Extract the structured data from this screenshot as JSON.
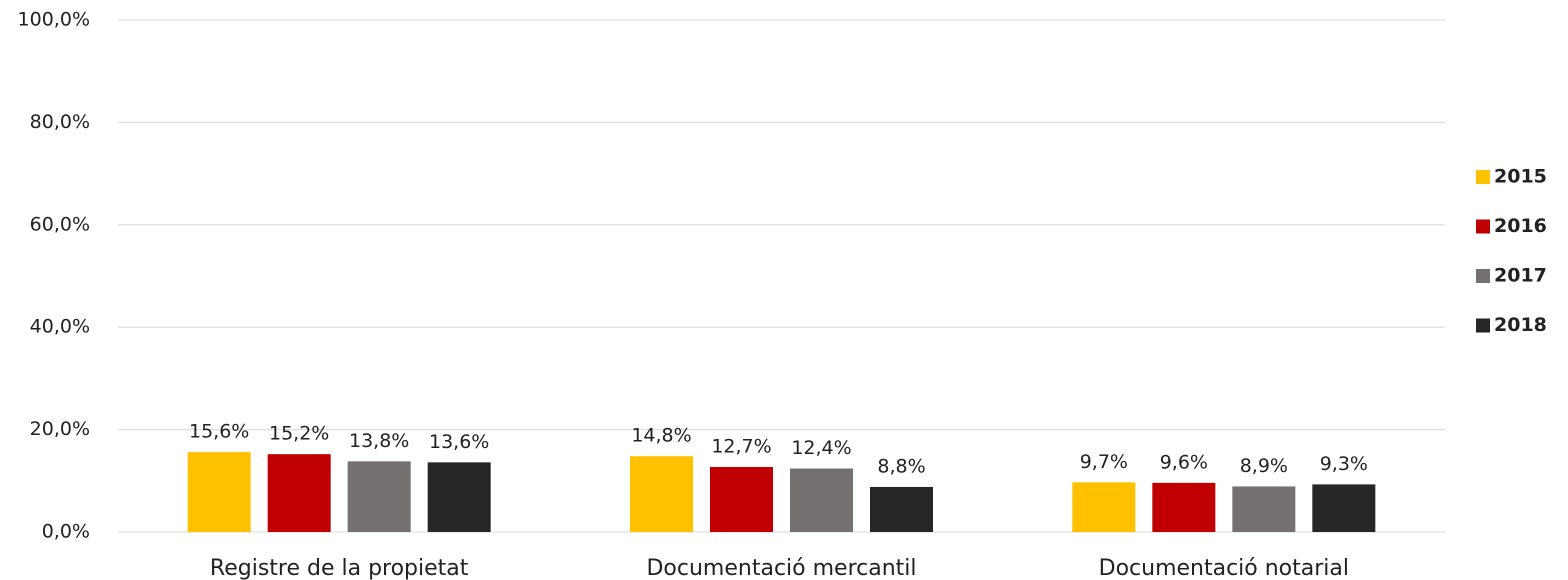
{
  "chart_data": {
    "type": "bar",
    "categories": [
      "Registre de la propietat",
      "Documentació mercantil",
      "Documentació notarial"
    ],
    "series": [
      {
        "name": "2015",
        "color": "#ffc000",
        "values": [
          15.6,
          14.8,
          9.7
        ],
        "value_labels": [
          "15,6%",
          "14,8%",
          "9,7%"
        ]
      },
      {
        "name": "2016",
        "color": "#c00000",
        "values": [
          15.2,
          12.7,
          9.6
        ],
        "value_labels": [
          "15,2%",
          "12,7%",
          "9,6%"
        ]
      },
      {
        "name": "2017",
        "color": "#767171",
        "values": [
          13.8,
          12.4,
          8.9
        ],
        "value_labels": [
          "13,8%",
          "12,4%",
          "8,9%"
        ]
      },
      {
        "name": "2018",
        "color": "#262626",
        "values": [
          13.6,
          8.8,
          9.3
        ],
        "value_labels": [
          "13,6%",
          "8,8%",
          "9,3%"
        ]
      }
    ],
    "ylim": [
      0,
      100
    ],
    "yticks": [
      {
        "value": 0,
        "label": "0,0%"
      },
      {
        "value": 20,
        "label": "20,0%"
      },
      {
        "value": 40,
        "label": "40,0%"
      },
      {
        "value": 60,
        "label": "60,0%"
      },
      {
        "value": 80,
        "label": "80,0%"
      },
      {
        "value": 100,
        "label": "100,0%"
      }
    ],
    "grid": true,
    "legend": "right"
  }
}
